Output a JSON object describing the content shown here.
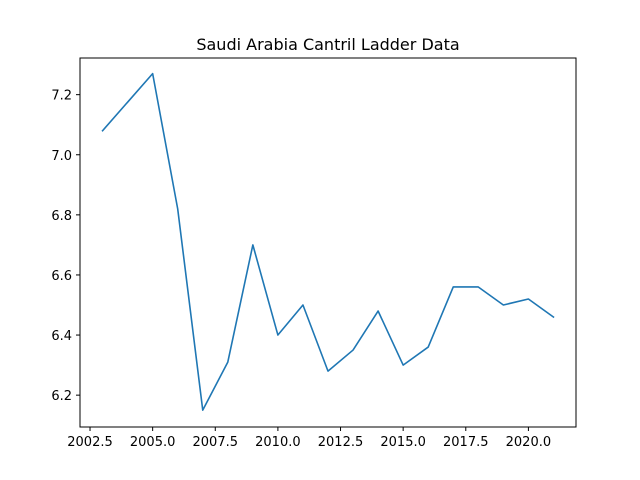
{
  "chart_data": {
    "type": "line",
    "title": "Saudi Arabia Cantril Ladder Data",
    "xlabel": "",
    "ylabel": "",
    "xlim": [
      2002.1,
      2021.9
    ],
    "ylim": [
      6.094,
      7.322
    ],
    "x_ticks": [
      2002.5,
      2005.0,
      2007.5,
      2010.0,
      2012.5,
      2015.0,
      2017.5,
      2020.0
    ],
    "x_tick_labels": [
      "2002.5",
      "2005.0",
      "2007.5",
      "2010.0",
      "2012.5",
      "2015.0",
      "2017.5",
      "2020.0"
    ],
    "y_ticks": [
      6.2,
      6.4,
      6.6,
      6.8,
      7.0,
      7.2
    ],
    "y_tick_labels": [
      "6.2",
      "6.4",
      "6.6",
      "6.8",
      "7.0",
      "7.2"
    ],
    "grid": false,
    "legend": "none",
    "series": [
      {
        "color": "#1f77b4",
        "x": [
          2003,
          2005,
          2006,
          2007,
          2008,
          2009,
          2010,
          2011,
          2012,
          2013,
          2014,
          2015,
          2016,
          2017,
          2018,
          2019,
          2020,
          2021
        ],
        "y": [
          7.08,
          7.27,
          6.82,
          6.15,
          6.31,
          6.7,
          6.4,
          6.5,
          6.28,
          6.35,
          6.48,
          6.3,
          6.36,
          6.56,
          6.56,
          6.5,
          6.52,
          6.46
        ]
      }
    ]
  }
}
